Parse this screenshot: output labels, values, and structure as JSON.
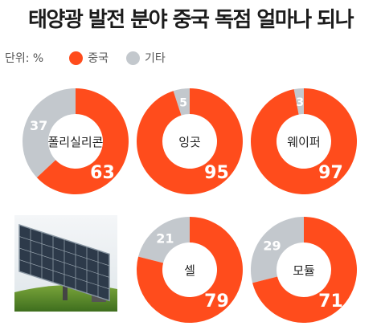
{
  "title": "태양광 발전 분야 중국 독점 얼마나 되나",
  "unit_label": "단위: %",
  "colors": {
    "china": "#ff4c1c",
    "other": "#c3c8cd"
  },
  "chart_data": {
    "type": "pie",
    "title": "태양광 발전 분야 중국 독점 얼마나 되나",
    "unit": "%",
    "legend": [
      "중국",
      "기타"
    ],
    "legend_position": "top-left",
    "charts": [
      {
        "category": "폴리실리콘",
        "china": 63,
        "other": 37
      },
      {
        "category": "잉곳",
        "china": 95,
        "other": 5
      },
      {
        "category": "웨이퍼",
        "china": 97,
        "other": 3
      },
      {
        "category": "셀",
        "china": 79,
        "other": 21
      },
      {
        "category": "모듈",
        "china": 71,
        "other": 29
      }
    ]
  }
}
